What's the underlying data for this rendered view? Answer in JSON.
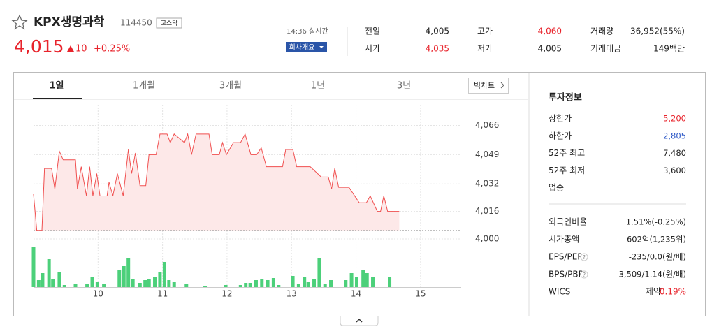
{
  "header": {
    "name": "KPX생명과학",
    "code": "114450",
    "market": "코스닥",
    "price": "4,015",
    "change": "10",
    "change_rate": "+0.25%",
    "time": "14:36 실시간",
    "company_button": "회사개요"
  },
  "quote": [
    {
      "label": "전일",
      "value": "4,005"
    },
    {
      "label": "고가",
      "value": "4,060"
    },
    {
      "label": "거래량",
      "value": "36,952(55%)"
    },
    {
      "label": "시가",
      "value": "4,035"
    },
    {
      "label": "저가",
      "value": "4,005"
    },
    {
      "label": "거래대금",
      "value": "149백만"
    }
  ],
  "tabs": [
    "1일",
    "1개월",
    "3개월",
    "1년",
    "3년"
  ],
  "active_tab": 0,
  "big_chart_button": "빅차트",
  "chart_data": {
    "type": "line",
    "price": {
      "color": "#f04f4f",
      "x": [
        9.0,
        9.05,
        9.13,
        9.17,
        9.28,
        9.33,
        9.4,
        9.46,
        9.65,
        9.68,
        9.74,
        9.82,
        9.87,
        9.92,
        9.98,
        10.03,
        10.14,
        10.17,
        10.23,
        10.3,
        10.39,
        10.47,
        10.52,
        10.58,
        10.65,
        10.74,
        10.79,
        10.9,
        10.96,
        11.07,
        11.12,
        11.18,
        11.34,
        11.39,
        11.45,
        11.52,
        11.72,
        11.77,
        11.88,
        11.93,
        11.99,
        12.1,
        12.21,
        12.28,
        12.37,
        12.46,
        12.53,
        12.61,
        12.86,
        12.91,
        13.02,
        13.08,
        13.29,
        13.46,
        13.57,
        13.62,
        13.67,
        13.73,
        13.89,
        14.05,
        14.16,
        14.22,
        14.33,
        14.38,
        14.43,
        14.49,
        14.67
      ],
      "values": [
        4026,
        4005,
        4005,
        4041,
        4041,
        4029,
        4051,
        4046,
        4046,
        4029,
        4042,
        4025,
        4042,
        4025,
        4038,
        4025,
        4025,
        4033,
        4025,
        4038,
        4025,
        4052,
        4038,
        4050,
        4031,
        4031,
        4049,
        4049,
        4061,
        4061,
        4056,
        4061,
        4056,
        4061,
        4049,
        4061,
        4061,
        4049,
        4049,
        4056,
        4049,
        4056,
        4056,
        4061,
        4049,
        4049,
        4053,
        4042,
        4042,
        4052,
        4052,
        4042,
        4042,
        4036,
        4036,
        4029,
        4041,
        4030,
        4030,
        4021,
        4021,
        4025,
        4016,
        4016,
        4025,
        4016,
        4016
      ]
    },
    "reference_line": 4005,
    "volume": {
      "color": "#4cd07a",
      "x": [
        9.0,
        9.08,
        9.14,
        9.24,
        9.3,
        9.4,
        9.48,
        9.65,
        9.83,
        9.91,
        9.99,
        10.09,
        10.33,
        10.4,
        10.47,
        10.54,
        10.65,
        10.73,
        10.79,
        10.88,
        10.96,
        11.03,
        11.1,
        11.18,
        11.37,
        11.66,
        11.98,
        12.21,
        12.29,
        12.36,
        12.45,
        12.54,
        12.63,
        12.72,
        12.8,
        13.02,
        13.11,
        13.2,
        13.26,
        13.35,
        13.43,
        13.52,
        13.61,
        13.84,
        13.93,
        14.01,
        14.11,
        14.17,
        14.26,
        14.52
      ],
      "values": [
        58,
        10,
        20,
        40,
        12,
        22,
        3,
        5,
        5,
        15,
        8,
        4,
        25,
        30,
        42,
        12,
        6,
        10,
        12,
        15,
        22,
        36,
        10,
        8,
        5,
        2,
        3,
        3,
        6,
        6,
        10,
        12,
        10,
        13,
        3,
        16,
        4,
        14,
        8,
        12,
        42,
        4,
        10,
        10,
        20,
        14,
        24,
        20,
        14,
        14
      ],
      "ylim": [
        0,
        60
      ]
    },
    "xlim": [
      9.0,
      15.63
    ],
    "xticks": [
      10,
      11,
      12,
      13,
      14,
      15
    ],
    "ylim": [
      4000,
      4078
    ],
    "yticks": [
      {
        "value": 4066,
        "label": "4,066"
      },
      {
        "value": 4049,
        "label": "4,049"
      },
      {
        "value": 4032,
        "label": "4,032"
      },
      {
        "value": 4016,
        "label": "4,016"
      },
      {
        "value": 4000,
        "label": "4,000"
      }
    ],
    "grid": true
  },
  "invest": {
    "title": "투자정보",
    "group1": [
      {
        "label": "상한가",
        "value": "5,200"
      },
      {
        "label": "하한가",
        "value": "2,805"
      },
      {
        "label": "52주 최고",
        "value": "7,480"
      },
      {
        "label": "52주 최저",
        "value": "3,600"
      },
      {
        "label": "업종"
      }
    ],
    "group2": [
      {
        "label": "외국인비율",
        "value": "1.51%(-0.25%)"
      },
      {
        "label": "시가총액",
        "value": "602억(1,235위)"
      },
      {
        "label": "EPS/PER",
        "help": "?",
        "value": "-235/0.0(원/배)"
      },
      {
        "label": "BPS/PBR",
        "help": "?",
        "value": "3,509/1.14(원/배)"
      },
      {
        "label": "WICS",
        "value": "제약",
        "change": "0.19%"
      }
    ]
  }
}
